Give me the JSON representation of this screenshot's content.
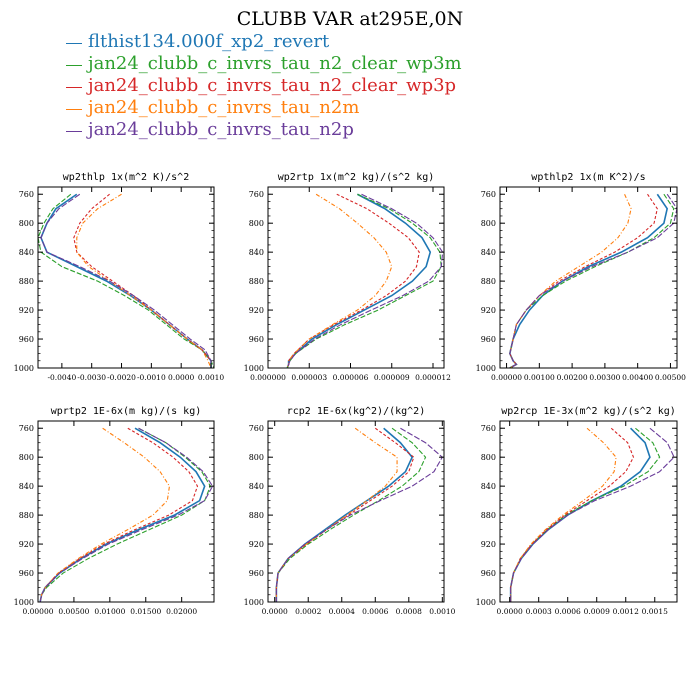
{
  "title": "CLUBB VAR at295E,0N",
  "legend": [
    {
      "label": "flthist134.000f_xp2_revert",
      "color": "#1f77b4"
    },
    {
      "label": "jan24_clubb_c_invrs_tau_n2_clear_wp3m",
      "color": "#2ca02c"
    },
    {
      "label": "jan24_clubb_c_invrs_tau_n2_clear_wp3p",
      "color": "#d62728"
    },
    {
      "label": "jan24_clubb_c_invrs_tau_n2m",
      "color": "#ff7f0e"
    },
    {
      "label": "jan24_clubb_c_invrs_tau_n2p",
      "color": "#6a3d9a"
    }
  ],
  "chart_data": [
    {
      "type": "line",
      "title": "wp2thlp  1x(m^2 K)/s^2",
      "ylim": [
        1000,
        750
      ],
      "yticks": [
        "760",
        "800",
        "840",
        "880",
        "920",
        "960",
        "1000"
      ],
      "xlim": [
        -0.0048,
        0.0011
      ],
      "xticks": [
        -0.004,
        -0.003,
        -0.002,
        -0.001,
        0.0,
        0.001
      ],
      "xtick_labels": [
        "-0.0040",
        "-0.0030",
        "-0.0020",
        "-0.0010",
        "0.0000",
        "0.0010"
      ],
      "y": [
        760,
        780,
        800,
        820,
        840,
        860,
        880,
        900,
        920,
        940,
        960,
        975,
        990,
        1000
      ],
      "series": [
        {
          "values": [
            -0.0035,
            -0.0042,
            -0.0045,
            -0.0047,
            -0.0045,
            -0.0035,
            -0.0025,
            -0.0017,
            -0.001,
            -0.0004,
            0.0002,
            0.0007,
            0.001,
            0.001
          ]
        },
        {
          "values": [
            -0.0037,
            -0.0043,
            -0.0046,
            -0.0048,
            -0.0047,
            -0.004,
            -0.0028,
            -0.0019,
            -0.0011,
            -0.0005,
            0.0001,
            0.0007,
            0.001,
            0.0011
          ]
        },
        {
          "values": [
            -0.0024,
            -0.003,
            -0.0034,
            -0.0036,
            -0.0035,
            -0.003,
            -0.0023,
            -0.0016,
            -0.001,
            -0.0004,
            0.0002,
            0.0007,
            0.001,
            0.001
          ]
        },
        {
          "values": [
            -0.002,
            -0.0028,
            -0.0033,
            -0.0035,
            -0.0035,
            -0.0031,
            -0.0024,
            -0.0017,
            -0.001,
            -0.0004,
            0.0002,
            0.0007,
            0.0009,
            0.001
          ]
        },
        {
          "values": [
            -0.0034,
            -0.0041,
            -0.0045,
            -0.0047,
            -0.0045,
            -0.0034,
            -0.0024,
            -0.0016,
            -0.0009,
            -0.0003,
            0.0003,
            0.0008,
            0.001,
            0.001
          ]
        }
      ]
    },
    {
      "type": "line",
      "title": "wp2rtp  1x(m^2 kg)/(s^2 kg)",
      "ylim": [
        1000,
        750
      ],
      "yticks": [
        "760",
        "800",
        "840",
        "880",
        "920",
        "960",
        "1000"
      ],
      "xlim": [
        0.0,
        1.28e-05
      ],
      "xticks": [
        0.0,
        3e-06,
        6e-06,
        9e-06,
        1.2e-05
      ],
      "xtick_labels": [
        "0.000000",
        "0.000003",
        "0.000006",
        "0.000009",
        "0.000012"
      ],
      "y": [
        760,
        780,
        800,
        820,
        840,
        860,
        880,
        900,
        920,
        940,
        960,
        980,
        990,
        995,
        1000
      ],
      "series": [
        {
          "values": [
            6.5e-06,
            8.5e-06,
            1e-05,
            1.12e-05,
            1.18e-05,
            1.15e-05,
            1.05e-05,
            9e-06,
            7e-06,
            5e-06,
            3.2e-06,
            2e-06,
            1.5e-06,
            1.5e-06,
            1.4e-06
          ]
        },
        {
          "values": [
            6.5e-06,
            8.8e-06,
            1.05e-05,
            1.18e-05,
            1.25e-05,
            1.26e-05,
            1.2e-05,
            1e-05,
            8e-06,
            5.6e-06,
            3.5e-06,
            2e-06,
            1.6e-06,
            1.5e-06,
            1.4e-06
          ]
        },
        {
          "values": [
            5e-06,
            7.2e-06,
            8.8e-06,
            1.02e-05,
            1.1e-05,
            1.08e-05,
            1e-05,
            8.6e-06,
            6.8e-06,
            4.8e-06,
            3e-06,
            1.9e-06,
            1.5e-06,
            1.5e-06,
            1.4e-06
          ]
        },
        {
          "values": [
            3.5e-06,
            5.2e-06,
            6.5e-06,
            7.7e-06,
            8.6e-06,
            9e-06,
            8.6e-06,
            7.8e-06,
            6.5e-06,
            4.7e-06,
            3e-06,
            1.9e-06,
            1.5e-06,
            1.5e-06,
            1.4e-06
          ]
        },
        {
          "values": [
            6.8e-06,
            9e-06,
            1.08e-05,
            1.2e-05,
            1.27e-05,
            1.26e-05,
            1.17e-05,
            9.8e-06,
            7.5e-06,
            5.3e-06,
            3.4e-06,
            2e-06,
            1.6e-06,
            1.5e-06,
            1.4e-06
          ]
        }
      ]
    },
    {
      "type": "line",
      "title": "wpthlp2  1x(m K^2)/s",
      "ylim": [
        1000,
        750
      ],
      "yticks": [
        "760",
        "800",
        "840",
        "880",
        "920",
        "960",
        "1000"
      ],
      "xlim": [
        -0.0002,
        0.0052
      ],
      "xticks": [
        0.0,
        0.001,
        0.002,
        0.003,
        0.004,
        0.005
      ],
      "xtick_labels": [
        "0.00000",
        "0.00100",
        "0.00200",
        "0.00300",
        "0.00400",
        "0.00500"
      ],
      "y": [
        760,
        780,
        800,
        820,
        840,
        860,
        880,
        900,
        920,
        940,
        960,
        980,
        990,
        995,
        1000
      ],
      "series": [
        {
          "values": [
            0.0046,
            0.0049,
            0.0048,
            0.0043,
            0.0035,
            0.0025,
            0.0017,
            0.0011,
            0.0007,
            0.0004,
            0.0002,
            0.0001,
            0.0002,
            0.0003,
            0.0001
          ]
        },
        {
          "values": [
            0.0048,
            0.0051,
            0.005,
            0.0045,
            0.0037,
            0.0027,
            0.0018,
            0.0011,
            0.0006,
            0.0003,
            0.0002,
            0.0001,
            0.0002,
            0.0003,
            0.0001
          ]
        },
        {
          "values": [
            0.0043,
            0.0046,
            0.0045,
            0.004,
            0.0033,
            0.0024,
            0.0016,
            0.001,
            0.0006,
            0.0003,
            0.0002,
            0.0001,
            0.0002,
            0.0003,
            0.0001
          ]
        },
        {
          "values": [
            0.0036,
            0.0038,
            0.0037,
            0.0034,
            0.0029,
            0.0022,
            0.0015,
            0.001,
            0.0006,
            0.0003,
            0.0002,
            0.0001,
            0.0002,
            0.0003,
            0.0001
          ]
        },
        {
          "values": [
            0.0049,
            0.0052,
            0.0051,
            0.0046,
            0.0037,
            0.0026,
            0.0017,
            0.001,
            0.0006,
            0.0003,
            0.0002,
            0.0001,
            0.0002,
            0.0003,
            0.0001
          ]
        }
      ]
    },
    {
      "type": "line",
      "title": "wprtp2  1E-6x(m kg)/(s kg)",
      "ylim": [
        1000,
        750
      ],
      "yticks": [
        "760",
        "800",
        "840",
        "880",
        "920",
        "960",
        "1000"
      ],
      "xlim": [
        0.0,
        0.0245
      ],
      "xticks": [
        0.0,
        0.005,
        0.01,
        0.015,
        0.02
      ],
      "xtick_labels": [
        "0.00000",
        "0.00500",
        "0.01000",
        "0.01500",
        "0.02000"
      ],
      "y": [
        760,
        780,
        800,
        820,
        840,
        860,
        880,
        900,
        920,
        940,
        960,
        980,
        990,
        1000
      ],
      "series": [
        {
          "values": [
            0.0135,
            0.017,
            0.0198,
            0.022,
            0.0232,
            0.0225,
            0.019,
            0.014,
            0.0095,
            0.006,
            0.003,
            0.001,
            0.0005,
            0.0003
          ]
        },
        {
          "values": [
            0.014,
            0.0178,
            0.0205,
            0.0228,
            0.024,
            0.0232,
            0.02,
            0.0155,
            0.011,
            0.007,
            0.0035,
            0.0012,
            0.0005,
            0.0003
          ]
        },
        {
          "values": [
            0.0125,
            0.016,
            0.0188,
            0.021,
            0.0222,
            0.0215,
            0.0182,
            0.0135,
            0.0092,
            0.0058,
            0.0028,
            0.001,
            0.0005,
            0.0003
          ]
        },
        {
          "values": [
            0.009,
            0.012,
            0.0148,
            0.017,
            0.0183,
            0.018,
            0.016,
            0.0125,
            0.0088,
            0.0056,
            0.0028,
            0.001,
            0.0005,
            0.0003
          ]
        },
        {
          "values": [
            0.014,
            0.0178,
            0.0207,
            0.023,
            0.0243,
            0.0232,
            0.0195,
            0.0145,
            0.0098,
            0.0062,
            0.003,
            0.001,
            0.0005,
            0.0003
          ]
        }
      ]
    },
    {
      "type": "line",
      "title": "rcp2  1E-6x(kg^2)/(kg^2)",
      "ylim": [
        1000,
        750
      ],
      "yticks": [
        "760",
        "800",
        "840",
        "880",
        "920",
        "960",
        "1000"
      ],
      "xlim": [
        -4e-05,
        0.00101
      ],
      "xticks": [
        0.0,
        0.0002,
        0.0004,
        0.0006,
        0.0008,
        0.001
      ],
      "xtick_labels": [
        "0.0000",
        "0.0002",
        "0.0004",
        "0.0006",
        "0.0008",
        "0.0010"
      ],
      "y": [
        760,
        780,
        800,
        820,
        840,
        860,
        880,
        900,
        920,
        940,
        960,
        980,
        1000
      ],
      "series": [
        {
          "values": [
            0.00065,
            0.00075,
            0.00082,
            0.00078,
            0.00068,
            0.00055,
            0.00042,
            0.0003,
            0.00018,
            8e-05,
            2e-05,
            1e-05,
            1e-05
          ]
        },
        {
          "values": [
            0.0007,
            0.00082,
            0.0009,
            0.00086,
            0.00076,
            0.00062,
            0.00047,
            0.00033,
            0.0002,
            9e-05,
            2e-05,
            1e-05,
            1e-05
          ]
        },
        {
          "values": [
            0.0006,
            0.00072,
            0.00083,
            0.0008,
            0.0007,
            0.00057,
            0.00044,
            0.00031,
            0.00019,
            8e-05,
            2e-05,
            1e-05,
            1e-05
          ]
        },
        {
          "values": [
            0.00048,
            0.0006,
            0.00073,
            0.00073,
            0.00066,
            0.00055,
            0.00043,
            0.00031,
            0.00019,
            8e-05,
            2e-05,
            1e-05,
            1e-05
          ]
        },
        {
          "values": [
            0.00075,
            0.0009,
            0.001,
            0.00095,
            0.00082,
            0.00063,
            0.00045,
            0.00031,
            0.00018,
            8e-05,
            2e-05,
            1e-05,
            1e-05
          ]
        }
      ]
    },
    {
      "type": "line",
      "title": "wp2rcp  1E-3x(m^2 kg)/(s^2 kg)",
      "ylim": [
        1000,
        750
      ],
      "yticks": [
        "760",
        "800",
        "840",
        "880",
        "920",
        "960",
        "1000"
      ],
      "xlim": [
        -0.0001,
        0.00173
      ],
      "xticks": [
        0.0,
        0.0003,
        0.0006,
        0.0009,
        0.0012,
        0.0015
      ],
      "xtick_labels": [
        "0.0000",
        "0.0003",
        "0.0006",
        "0.0009",
        "0.0012",
        "0.0015"
      ],
      "y": [
        760,
        780,
        800,
        820,
        840,
        860,
        880,
        900,
        920,
        940,
        960,
        980,
        1000
      ],
      "series": [
        {
          "values": [
            0.00125,
            0.0014,
            0.00145,
            0.00135,
            0.00115,
            0.00085,
            0.0006,
            0.0004,
            0.00024,
            0.00012,
            4e-05,
            1e-05,
            1e-05
          ]
        },
        {
          "values": [
            0.0013,
            0.00148,
            0.00155,
            0.00143,
            0.00118,
            0.00085,
            0.00058,
            0.00039,
            0.00023,
            0.00011,
            4e-05,
            1e-05,
            1e-05
          ]
        },
        {
          "values": [
            0.00105,
            0.00122,
            0.00128,
            0.0012,
            0.00103,
            0.0008,
            0.00057,
            0.00038,
            0.00023,
            0.00011,
            4e-05,
            1e-05,
            1e-05
          ]
        },
        {
          "values": [
            0.0008,
            0.00097,
            0.0011,
            0.00108,
            0.00096,
            0.00076,
            0.00055,
            0.00037,
            0.00022,
            0.00011,
            4e-05,
            1e-05,
            1e-05
          ]
        },
        {
          "values": [
            0.00145,
            0.00163,
            0.0017,
            0.00155,
            0.00125,
            0.00088,
            0.0006,
            0.0004,
            0.00024,
            0.00012,
            4e-05,
            1e-05,
            1e-05
          ]
        }
      ]
    }
  ]
}
